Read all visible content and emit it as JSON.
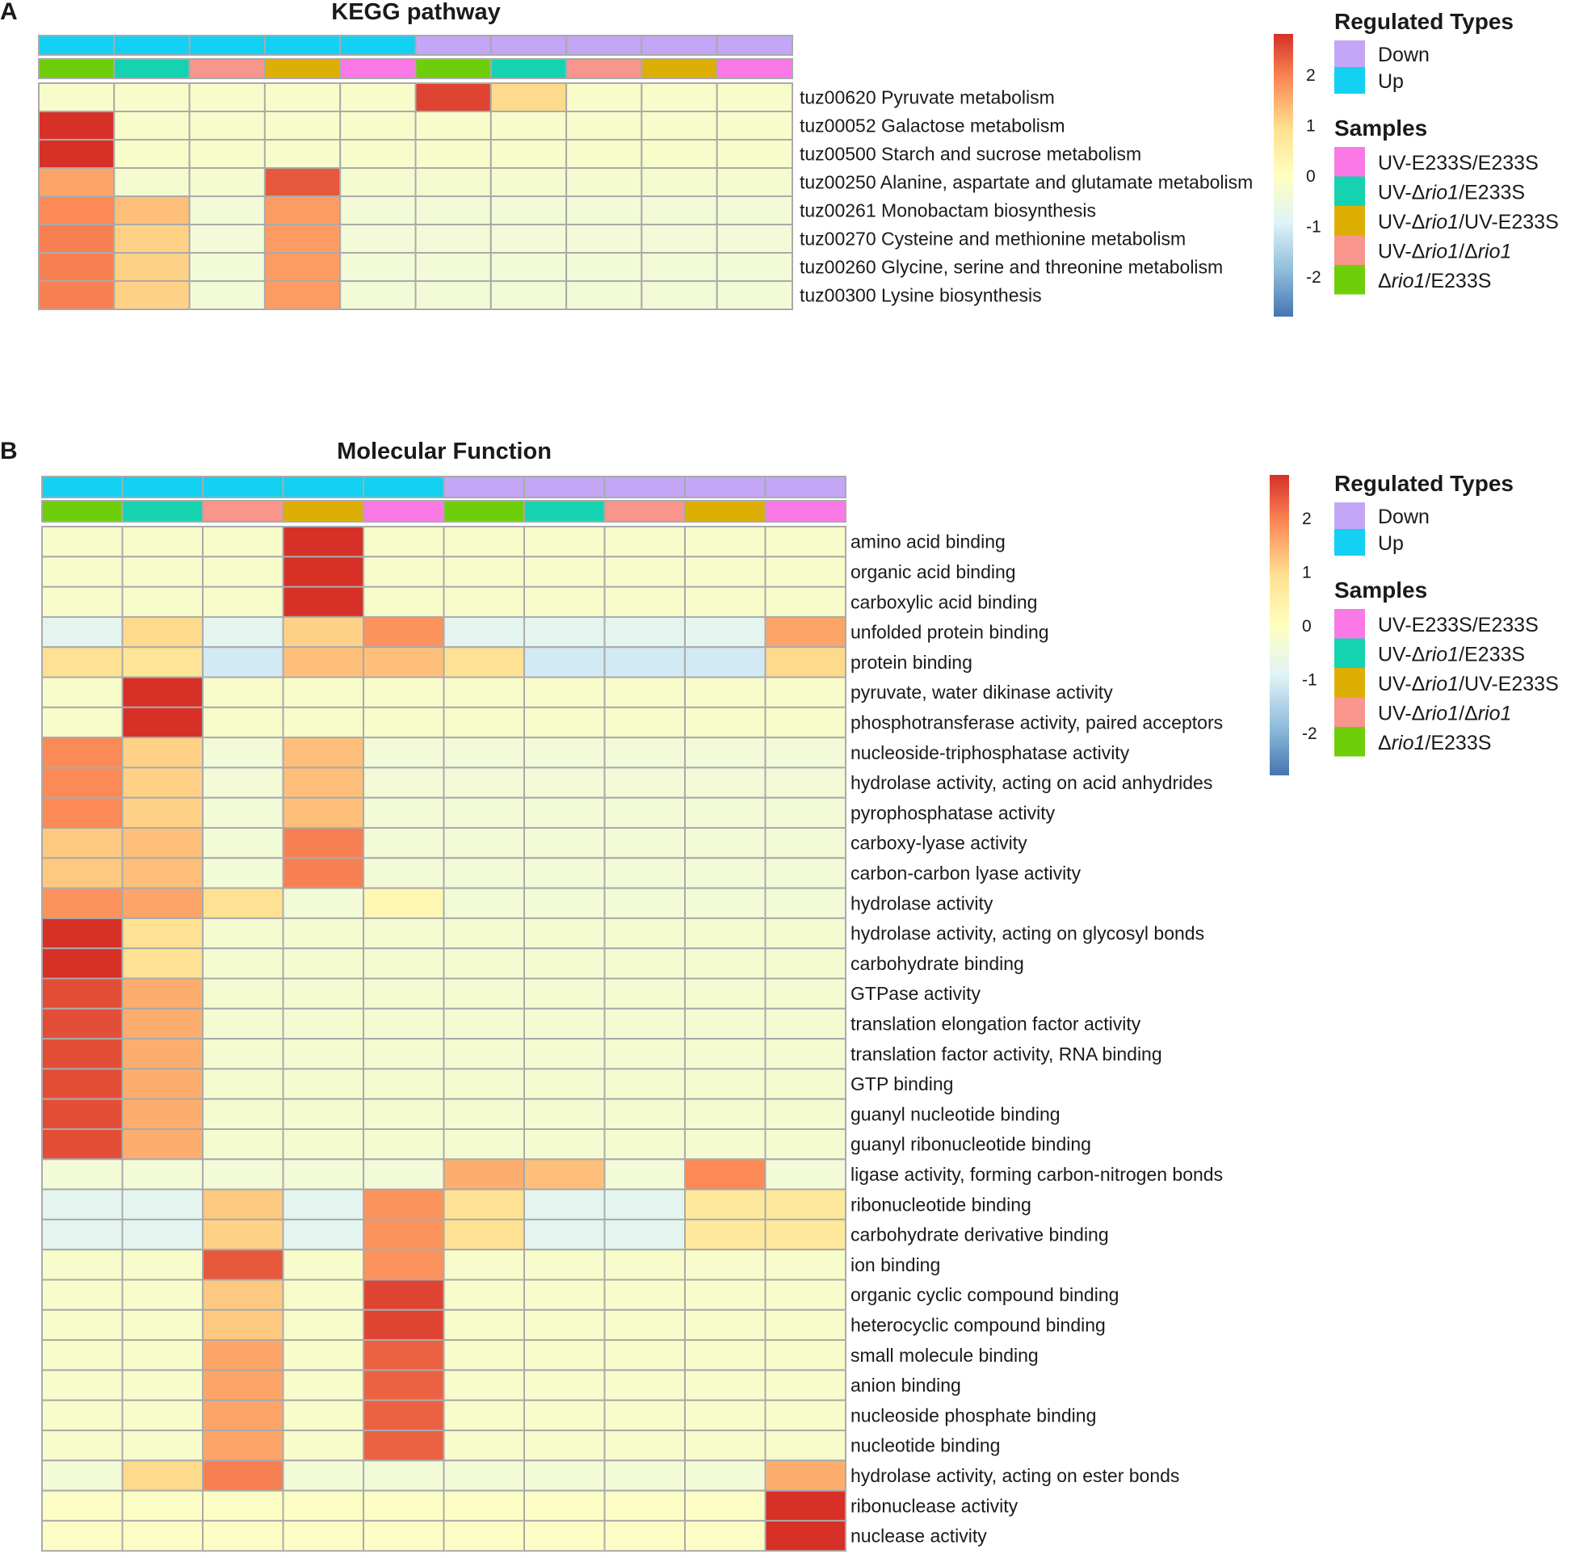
{
  "colors": {
    "regulated": {
      "Down": "#C3A6F5",
      "Up": "#12D1F2"
    },
    "samples": {
      "UV-E233S/E233S": "#FA79E7",
      "UV-Δrio1/E233S": "#15D3B0",
      "UV-Δrio1/UV-E233S": "#DDAF05",
      "UV-Δrio1/Δrio1": "#F8958C",
      "Δrio1/E233S": "#6ECE09"
    },
    "scale": [
      "#4575B4",
      "#91BFDB",
      "#E0F3F8",
      "#FFFFBF",
      "#FEE090",
      "#FC8D59",
      "#D73027"
    ]
  },
  "chart_data": [
    {
      "type": "heatmap",
      "panel": "A",
      "title": "KEGG pathway",
      "column_regulated": [
        "Up",
        "Up",
        "Up",
        "Up",
        "Up",
        "Down",
        "Down",
        "Down",
        "Down",
        "Down"
      ],
      "column_samples": [
        "Δrio1/E233S",
        "UV-Δrio1/E233S",
        "UV-Δrio1/Δrio1",
        "UV-Δrio1/UV-E233S",
        "UV-E233S/E233S",
        "Δrio1/E233S",
        "UV-Δrio1/E233S",
        "UV-Δrio1/Δrio1",
        "UV-Δrio1/UV-E233S",
        "UV-E233S/E233S"
      ],
      "rows": [
        "tuz00620 Pyruvate metabolism",
        "tuz00052 Galactose metabolism",
        "tuz00500 Starch and sucrose metabolism",
        "tuz00250 Alanine, aspartate and glutamate metabolism",
        "tuz00261 Monobactam biosynthesis",
        "tuz00270 Cysteine and methionine metabolism",
        "tuz00260 Glycine, serine and threonine metabolism",
        "tuz00300 Lysine biosynthesis"
      ],
      "values": [
        [
          -0.2,
          -0.2,
          -0.2,
          -0.2,
          -0.2,
          2.6,
          1.0,
          -0.2,
          -0.2,
          -0.2
        ],
        [
          2.8,
          -0.2,
          -0.2,
          -0.2,
          -0.2,
          -0.2,
          -0.2,
          -0.2,
          -0.2,
          -0.2
        ],
        [
          2.8,
          -0.2,
          -0.2,
          -0.2,
          -0.2,
          -0.2,
          -0.2,
          -0.2,
          -0.2,
          -0.2
        ],
        [
          1.6,
          -0.3,
          -0.3,
          2.4,
          -0.3,
          -0.3,
          -0.3,
          -0.3,
          -0.3,
          -0.3
        ],
        [
          1.9,
          1.3,
          -0.4,
          1.7,
          -0.4,
          -0.4,
          -0.4,
          -0.4,
          -0.4,
          -0.4
        ],
        [
          2.0,
          1.1,
          -0.4,
          1.7,
          -0.4,
          -0.4,
          -0.4,
          -0.4,
          -0.4,
          -0.4
        ],
        [
          2.0,
          1.1,
          -0.4,
          1.7,
          -0.4,
          -0.4,
          -0.4,
          -0.4,
          -0.4,
          -0.4
        ],
        [
          2.0,
          1.1,
          -0.4,
          1.7,
          -0.4,
          -0.4,
          -0.4,
          -0.4,
          -0.4,
          -0.4
        ]
      ],
      "scale_range": [
        -2.8,
        2.8
      ],
      "scale_ticks": [
        "2",
        "1",
        "0",
        "-1",
        "-2"
      ]
    },
    {
      "type": "heatmap",
      "panel": "B",
      "title": "Molecular Function",
      "column_regulated": [
        "Up",
        "Up",
        "Up",
        "Up",
        "Up",
        "Down",
        "Down",
        "Down",
        "Down",
        "Down"
      ],
      "column_samples": [
        "Δrio1/E233S",
        "UV-Δrio1/E233S",
        "UV-Δrio1/Δrio1",
        "UV-Δrio1/UV-E233S",
        "UV-E233S/E233S",
        "Δrio1/E233S",
        "UV-Δrio1/E233S",
        "UV-Δrio1/Δrio1",
        "UV-Δrio1/UV-E233S",
        "UV-E233S/E233S"
      ],
      "rows": [
        "amino acid binding",
        "organic acid binding",
        "carboxylic acid binding",
        "unfolded protein binding",
        "protein binding",
        "pyruvate, water dikinase activity",
        "phosphotransferase activity, paired acceptors",
        "nucleoside-triphosphatase activity",
        "hydrolase activity, acting on acid anhydrides",
        "pyrophosphatase activity",
        "carboxy-lyase activity",
        "carbon-carbon lyase activity",
        "hydrolase activity",
        "hydrolase activity, acting on glycosyl bonds",
        "carbohydrate binding",
        "GTPase activity",
        "translation elongation factor activity",
        "translation factor activity, RNA binding",
        "GTP binding",
        "guanyl nucleotide binding",
        "guanyl ribonucleotide binding",
        "ligase activity, forming carbon-nitrogen bonds",
        "ribonucleotide binding",
        "carbohydrate derivative binding",
        "ion binding",
        "organic cyclic compound binding",
        "heterocyclic compound binding",
        "small molecule binding",
        "anion binding",
        "nucleoside phosphate binding",
        "nucleotide binding",
        "hydrolase activity, acting on ester bonds",
        "ribonuclease activity",
        "nuclease activity"
      ],
      "values": [
        [
          -0.2,
          -0.2,
          -0.2,
          2.8,
          -0.2,
          -0.2,
          -0.2,
          -0.2,
          -0.2,
          -0.2
        ],
        [
          -0.2,
          -0.2,
          -0.2,
          2.8,
          -0.2,
          -0.2,
          -0.2,
          -0.2,
          -0.2,
          -0.2
        ],
        [
          -0.2,
          -0.2,
          -0.2,
          2.8,
          -0.2,
          -0.2,
          -0.2,
          -0.2,
          -0.2,
          -0.2
        ],
        [
          -0.8,
          1.0,
          -0.8,
          1.1,
          1.8,
          -0.8,
          -0.8,
          -0.8,
          -0.8,
          1.6
        ],
        [
          0.9,
          0.8,
          -1.1,
          1.3,
          1.3,
          0.9,
          -1.1,
          -1.1,
          -1.1,
          1.0
        ],
        [
          -0.2,
          2.8,
          -0.2,
          -0.2,
          -0.2,
          -0.2,
          -0.2,
          -0.2,
          -0.2,
          -0.2
        ],
        [
          -0.2,
          2.8,
          -0.2,
          -0.2,
          -0.2,
          -0.2,
          -0.2,
          -0.2,
          -0.2,
          -0.2
        ],
        [
          1.9,
          1.1,
          -0.4,
          1.3,
          -0.4,
          -0.4,
          -0.4,
          -0.4,
          -0.4,
          -0.4
        ],
        [
          1.9,
          1.1,
          -0.4,
          1.3,
          -0.4,
          -0.4,
          -0.4,
          -0.4,
          -0.4,
          -0.4
        ],
        [
          1.9,
          1.1,
          -0.4,
          1.3,
          -0.4,
          -0.4,
          -0.4,
          -0.4,
          -0.4,
          -0.4
        ],
        [
          1.2,
          1.3,
          -0.4,
          2.0,
          -0.4,
          -0.4,
          -0.4,
          -0.4,
          -0.4,
          -0.4
        ],
        [
          1.2,
          1.3,
          -0.4,
          2.0,
          -0.4,
          -0.4,
          -0.4,
          -0.4,
          -0.4,
          -0.4
        ],
        [
          1.8,
          1.6,
          0.9,
          -0.4,
          0.2,
          -0.4,
          -0.4,
          -0.4,
          -0.4,
          -0.4
        ],
        [
          2.8,
          0.9,
          -0.3,
          -0.3,
          -0.3,
          -0.3,
          -0.3,
          -0.3,
          -0.3,
          -0.3
        ],
        [
          2.8,
          0.9,
          -0.3,
          -0.3,
          -0.3,
          -0.3,
          -0.3,
          -0.3,
          -0.3,
          -0.3
        ],
        [
          2.5,
          1.5,
          -0.3,
          -0.3,
          -0.3,
          -0.3,
          -0.3,
          -0.3,
          -0.3,
          -0.3
        ],
        [
          2.5,
          1.5,
          -0.3,
          -0.3,
          -0.3,
          -0.3,
          -0.3,
          -0.3,
          -0.3,
          -0.3
        ],
        [
          2.5,
          1.5,
          -0.3,
          -0.3,
          -0.3,
          -0.3,
          -0.3,
          -0.3,
          -0.3,
          -0.3
        ],
        [
          2.5,
          1.5,
          -0.3,
          -0.3,
          -0.3,
          -0.3,
          -0.3,
          -0.3,
          -0.3,
          -0.3
        ],
        [
          2.5,
          1.5,
          -0.3,
          -0.3,
          -0.3,
          -0.3,
          -0.3,
          -0.3,
          -0.3,
          -0.3
        ],
        [
          2.5,
          1.5,
          -0.3,
          -0.3,
          -0.3,
          -0.3,
          -0.3,
          -0.3,
          -0.3,
          -0.3
        ],
        [
          -0.4,
          -0.4,
          -0.4,
          -0.4,
          -0.4,
          1.5,
          1.3,
          -0.4,
          1.9,
          -0.4
        ],
        [
          -0.8,
          -0.8,
          1.2,
          -0.8,
          1.8,
          0.9,
          -0.8,
          -0.8,
          0.7,
          0.7
        ],
        [
          -0.8,
          -0.8,
          1.1,
          -0.8,
          1.8,
          0.9,
          -0.8,
          -0.8,
          0.7,
          0.7
        ],
        [
          -0.2,
          -0.2,
          2.4,
          -0.2,
          1.8,
          -0.2,
          -0.2,
          -0.2,
          -0.2,
          -0.2
        ],
        [
          -0.2,
          -0.2,
          1.2,
          -0.2,
          2.6,
          -0.2,
          -0.2,
          -0.2,
          -0.2,
          -0.2
        ],
        [
          -0.2,
          -0.2,
          1.2,
          -0.2,
          2.6,
          -0.2,
          -0.2,
          -0.2,
          -0.2,
          -0.2
        ],
        [
          -0.2,
          -0.2,
          1.6,
          -0.2,
          2.3,
          -0.2,
          -0.2,
          -0.2,
          -0.2,
          -0.2
        ],
        [
          -0.2,
          -0.2,
          1.6,
          -0.2,
          2.3,
          -0.2,
          -0.2,
          -0.2,
          -0.2,
          -0.2
        ],
        [
          -0.2,
          -0.2,
          1.6,
          -0.2,
          2.3,
          -0.2,
          -0.2,
          -0.2,
          -0.2,
          -0.2
        ],
        [
          -0.2,
          -0.2,
          1.6,
          -0.2,
          2.3,
          -0.2,
          -0.2,
          -0.2,
          -0.2,
          -0.2
        ],
        [
          -0.4,
          1.0,
          2.0,
          -0.4,
          -0.4,
          -0.4,
          -0.4,
          -0.4,
          -0.4,
          1.5
        ],
        [
          -0.1,
          -0.1,
          -0.1,
          -0.1,
          -0.1,
          -0.1,
          -0.1,
          -0.1,
          -0.1,
          2.8
        ],
        [
          -0.1,
          -0.1,
          -0.1,
          -0.1,
          -0.1,
          -0.1,
          -0.1,
          -0.1,
          -0.1,
          2.8
        ]
      ],
      "scale_range": [
        -2.8,
        2.8
      ],
      "scale_ticks": [
        "2",
        "1",
        "0",
        "-1",
        "-2"
      ]
    }
  ],
  "legend": {
    "regulated_title": "Regulated Types",
    "regulated_items": [
      "Down",
      "Up"
    ],
    "samples_title": "Samples",
    "samples_items": [
      {
        "label": "UV-E233S/E233S",
        "parts": [
          [
            "UV-E233S/E233S",
            false
          ]
        ]
      },
      {
        "label": "UV-Δrio1/E233S",
        "parts": [
          [
            "UV-Δ",
            false
          ],
          [
            "rio1",
            true
          ],
          [
            "/E233S",
            false
          ]
        ]
      },
      {
        "label": "UV-Δrio1/UV-E233S",
        "parts": [
          [
            "UV-Δ",
            false
          ],
          [
            "rio1",
            true
          ],
          [
            "/UV-E233S",
            false
          ]
        ]
      },
      {
        "label": "UV-Δrio1/Δrio1",
        "parts": [
          [
            "UV-Δ",
            false
          ],
          [
            "rio1",
            true
          ],
          [
            "/Δ",
            false
          ],
          [
            "rio1",
            true
          ]
        ]
      },
      {
        "label": "Δrio1/E233S",
        "parts": [
          [
            "Δ",
            false
          ],
          [
            "rio1",
            true
          ],
          [
            "/E233S",
            false
          ]
        ]
      }
    ]
  }
}
